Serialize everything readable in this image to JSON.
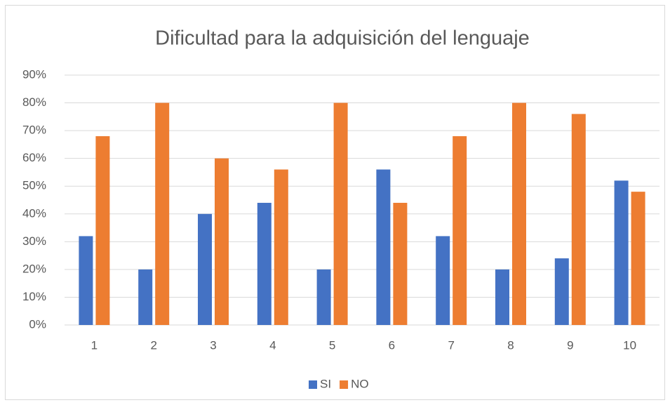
{
  "chart_data": {
    "type": "bar",
    "title": "Dificultad para la adquisición del lenguaje",
    "categories": [
      "1",
      "2",
      "3",
      "4",
      "5",
      "6",
      "7",
      "8",
      "9",
      "10"
    ],
    "series": [
      {
        "name": "SI",
        "color": "#4472c4",
        "values": [
          32,
          20,
          40,
          44,
          20,
          56,
          32,
          20,
          24,
          52
        ]
      },
      {
        "name": "NO",
        "color": "#ed7d31",
        "values": [
          68,
          80,
          60,
          56,
          80,
          44,
          68,
          80,
          76,
          48
        ]
      }
    ],
    "ylim": [
      0,
      90
    ],
    "yticks": [
      {
        "value": 0,
        "label": "0%"
      },
      {
        "value": 10,
        "label": "10%"
      },
      {
        "value": 20,
        "label": "20%"
      },
      {
        "value": 30,
        "label": "30%"
      },
      {
        "value": 40,
        "label": "40%"
      },
      {
        "value": 50,
        "label": "50%"
      },
      {
        "value": 60,
        "label": "60%"
      },
      {
        "value": 70,
        "label": "70%"
      },
      {
        "value": 80,
        "label": "80%"
      },
      {
        "value": 90,
        "label": "90%"
      }
    ],
    "grid": true,
    "legend": "bottom"
  }
}
